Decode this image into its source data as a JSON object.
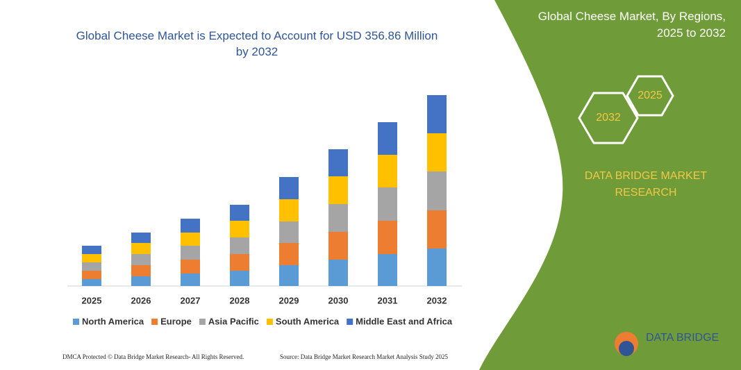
{
  "chart_data": {
    "type": "stacked-bar",
    "title": "Global Cheese Market is Expected to Account for USD 356.86 Million by 2032",
    "categories": [
      "2025",
      "2026",
      "2027",
      "2028",
      "2029",
      "2030",
      "2031",
      "2032"
    ],
    "series": [
      {
        "name": "North America",
        "color": "#5b9bd5",
        "values": [
          10,
          14,
          18,
          22,
          30,
          38,
          46,
          54
        ]
      },
      {
        "name": "Europe",
        "color": "#ed7d31",
        "values": [
          12,
          16,
          20,
          24,
          32,
          40,
          48,
          55
        ]
      },
      {
        "name": "Asia Pacific",
        "color": "#a5a5a5",
        "values": [
          12,
          16,
          20,
          24,
          31,
          40,
          48,
          56
        ]
      },
      {
        "name": "South America",
        "color": "#ffc000",
        "values": [
          12,
          16,
          19,
          24,
          32,
          40,
          47,
          55
        ]
      },
      {
        "name": "Middle East and Africa",
        "color": "#4472c4",
        "values": [
          12,
          15,
          20,
          23,
          32,
          39,
          47,
          55
        ]
      }
    ]
  },
  "panel": {
    "title": "Global Cheese Market, By Regions, 2025 to 2032",
    "hex_large": "2032",
    "hex_small": "2025",
    "brand": "DATA BRIDGE MARKET RESEARCH",
    "logo": "DATA BRIDGE"
  },
  "footer": {
    "left": "DMCA Protected © Data Bridge Market Research- All Rights Reserved.",
    "right": "Source: Data Bridge Market Research Market Analysis Study 2025"
  }
}
